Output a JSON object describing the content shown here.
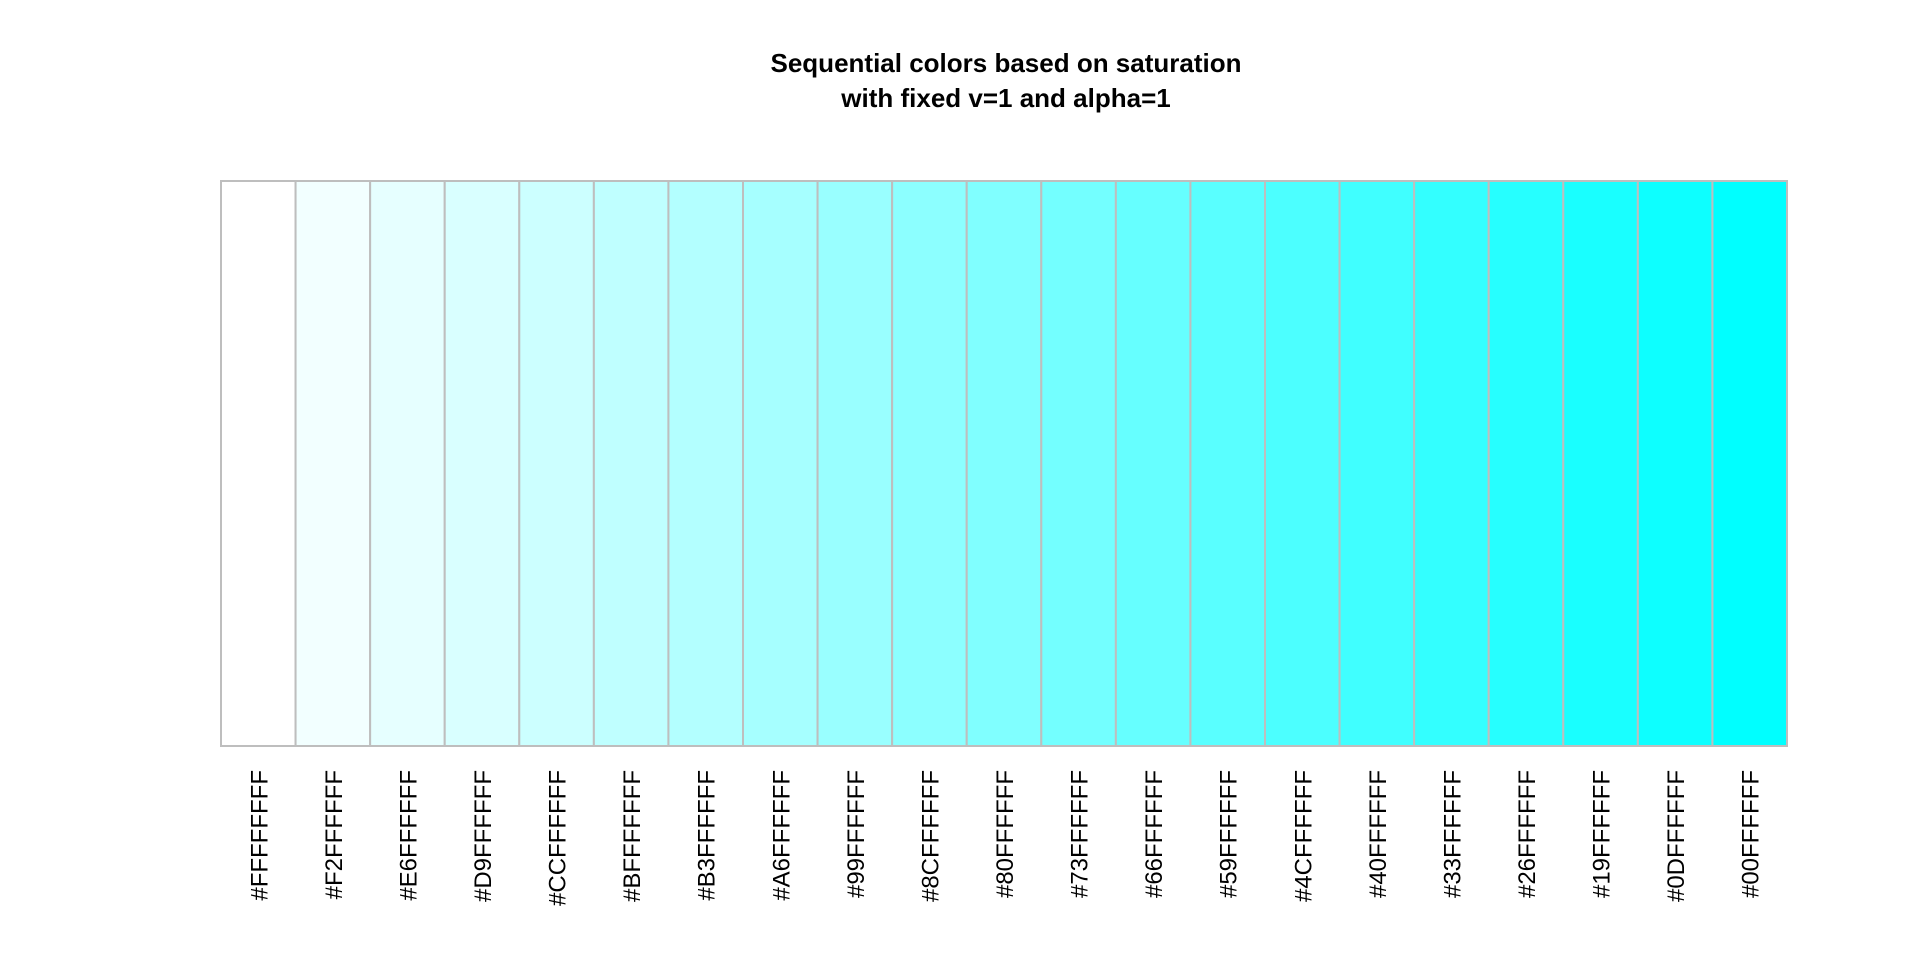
{
  "chart_data": {
    "type": "bar",
    "title": "Sequential colors based on saturation",
    "subtitle": "with fixed v=1 and alpha=1",
    "categories": [
      "#FFFFFFFF",
      "#F2FFFFFF",
      "#E6FFFFFF",
      "#D9FFFFFF",
      "#CCFFFFFF",
      "#BFFFFFFF",
      "#B3FFFFFF",
      "#A6FFFFFF",
      "#99FFFFFF",
      "#8CFFFFFF",
      "#80FFFFFF",
      "#73FFFFFF",
      "#66FFFFFF",
      "#59FFFFFF",
      "#4CFFFFFF",
      "#40FFFFFF",
      "#33FFFFFF",
      "#26FFFFFF",
      "#19FFFFFF",
      "#0DFFFFFF",
      "#00FFFFFF"
    ],
    "fill_colors": [
      "#FFFFFF",
      "#F2FFFF",
      "#E6FFFF",
      "#D9FFFF",
      "#CCFFFF",
      "#BFFFFF",
      "#B3FFFF",
      "#A6FFFF",
      "#99FFFF",
      "#8CFFFF",
      "#80FFFF",
      "#73FFFF",
      "#66FFFF",
      "#59FFFF",
      "#4CFFFF",
      "#40FFFF",
      "#33FFFF",
      "#26FFFF",
      "#19FFFF",
      "#0DFFFF",
      "#00FFFF"
    ],
    "values": [
      1,
      1,
      1,
      1,
      1,
      1,
      1,
      1,
      1,
      1,
      1,
      1,
      1,
      1,
      1,
      1,
      1,
      1,
      1,
      1,
      1
    ],
    "ylim": [
      0,
      1
    ],
    "border_color": "#BEBEBE",
    "grid": false,
    "legend": "none"
  }
}
